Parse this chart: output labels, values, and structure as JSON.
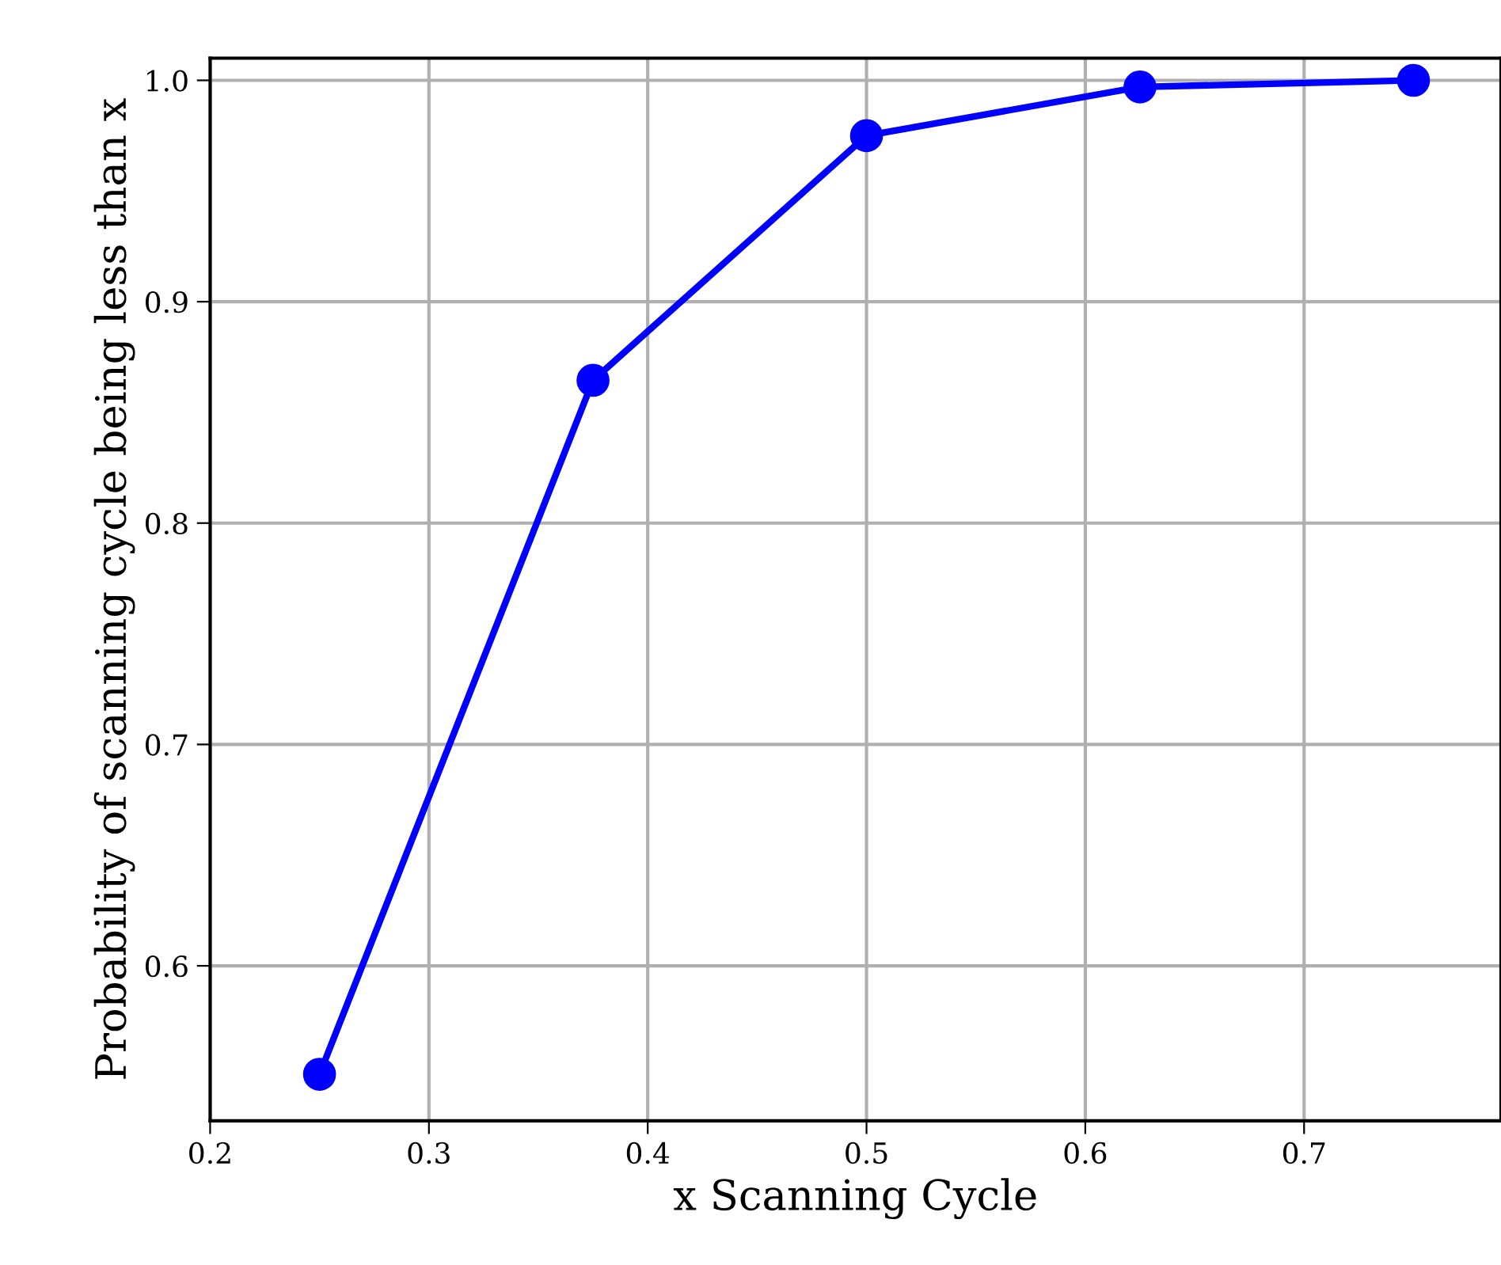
{
  "chart_data": {
    "type": "line",
    "xlabel": "x Scanning Cycle",
    "ylabel": "Probability of scanning cycle being less than x",
    "x": [
      0.25,
      0.375,
      0.5,
      0.625,
      0.75
    ],
    "series": [
      {
        "color": "#0000ff",
        "values": [
          0.551,
          0.8645,
          0.975,
          0.997,
          1.0
        ]
      }
    ],
    "xlim": [
      0.2,
      0.79
    ],
    "ylim": [
      0.53,
      1.01
    ],
    "xticks": [
      0.2,
      0.3,
      0.4,
      0.5,
      0.6,
      0.7
    ],
    "yticks": [
      0.6,
      0.7,
      0.8,
      0.9,
      {
        "value": 1.0,
        "label": "1.0"
      }
    ],
    "grid": true,
    "marker": "circle",
    "line_style": "solid",
    "legend": false
  }
}
